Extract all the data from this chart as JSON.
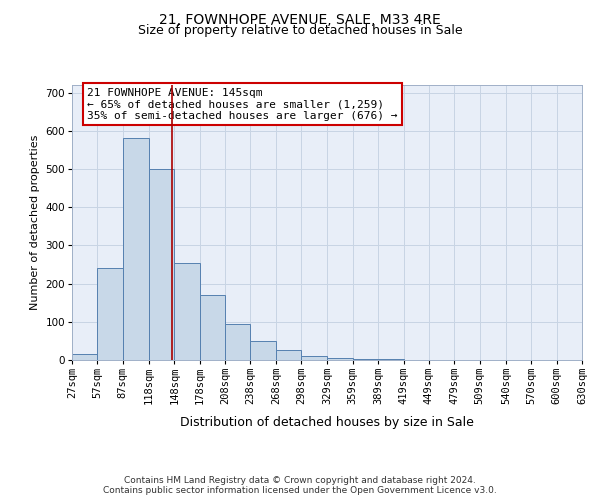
{
  "title1": "21, FOWNHOPE AVENUE, SALE, M33 4RE",
  "title2": "Size of property relative to detached houses in Sale",
  "xlabel": "Distribution of detached houses by size in Sale",
  "ylabel": "Number of detached properties",
  "bin_edges": [
    27,
    57,
    87,
    118,
    148,
    178,
    208,
    238,
    268,
    298,
    329,
    359,
    389,
    419,
    449,
    479,
    509,
    540,
    570,
    600,
    630
  ],
  "bar_heights": [
    15,
    240,
    580,
    500,
    255,
    170,
    95,
    50,
    25,
    10,
    5,
    3,
    2,
    1,
    1,
    1,
    0,
    0,
    0,
    0
  ],
  "bar_color": "#c8d8e8",
  "bar_edge_color": "#5580b0",
  "grid_color": "#c8d4e4",
  "background_color": "#e8eef8",
  "vline_x": 145,
  "vline_color": "#aa0000",
  "annotation_text": "21 FOWNHOPE AVENUE: 145sqm\n← 65% of detached houses are smaller (1,259)\n35% of semi-detached houses are larger (676) →",
  "annotation_box_color": "white",
  "annotation_box_edge_color": "#cc0000",
  "ylim": [
    0,
    720
  ],
  "yticks": [
    0,
    100,
    200,
    300,
    400,
    500,
    600,
    700
  ],
  "footnote": "Contains HM Land Registry data © Crown copyright and database right 2024.\nContains public sector information licensed under the Open Government Licence v3.0.",
  "title1_fontsize": 10,
  "title2_fontsize": 9,
  "xlabel_fontsize": 9,
  "ylabel_fontsize": 8,
  "tick_fontsize": 7.5,
  "annotation_fontsize": 8,
  "footnote_fontsize": 6.5
}
